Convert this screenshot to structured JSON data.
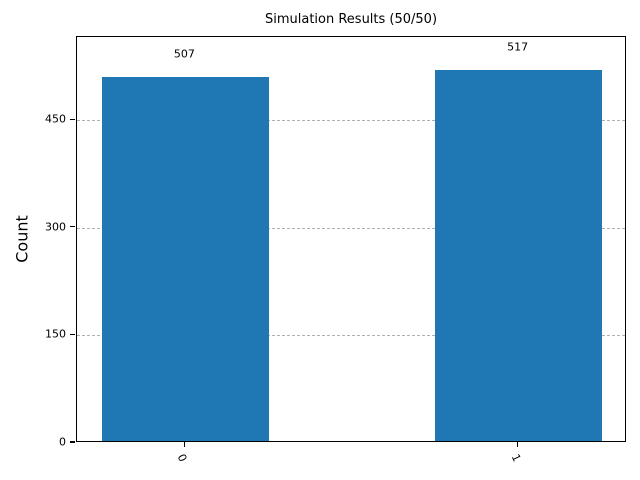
{
  "chart_data": {
    "type": "bar",
    "title": "Simulation Results (50/50)",
    "xlabel": "",
    "ylabel": "Count",
    "categories": [
      "0",
      "1"
    ],
    "values": [
      507,
      517
    ],
    "bar_value_labels": [
      "507",
      "517"
    ],
    "yticks": [
      0,
      150,
      300,
      450
    ],
    "ylim": [
      0,
      566
    ],
    "bar_color": "#1f77b4",
    "grid": "horizontal dashed, behind bars",
    "grid_color": "#b0b0b0",
    "spine_color": "#000000",
    "background_color": "#ffffff",
    "legend": "none",
    "x_tick_rotation_deg": 65
  }
}
